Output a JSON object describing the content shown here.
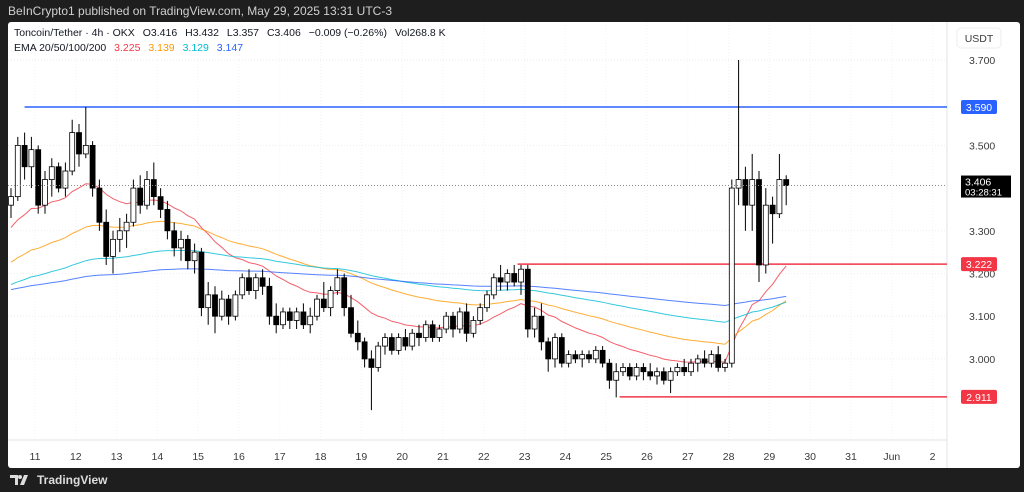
{
  "header": {
    "publisher": "BeInCrypto1 published on TradingView.com, May 29, 2025 13:31 UTC-3"
  },
  "legend": {
    "symbol": "Toncoin/Tether · 4h · OKX",
    "open": "O3.416",
    "high": "H3.432",
    "low": "L3.357",
    "close": "C3.406",
    "change": "−0.009 (−0.26%)",
    "volume": "Vol268.8 K",
    "ema_label": "EMA 20/50/100/200",
    "ema_values": [
      "3.225",
      "3.139",
      "3.129",
      "3.147"
    ]
  },
  "colors": {
    "up": "#ffffff",
    "down": "#000000",
    "ema20": "#f23645",
    "ema50": "#ff9800",
    "ema100": "#00bcd4",
    "ema200": "#2962ff",
    "blue_level": "#2962ff",
    "red_level": "#f23645"
  },
  "footer": {
    "brand": "TradingView"
  },
  "chart_data": {
    "type": "candlestick",
    "title": "Toncoin/Tether · 4h · OKX",
    "currency": "USDT",
    "ylim": [
      2.86,
      3.76
    ],
    "yticks": [
      "3.700",
      "3.500",
      "3.300",
      "3.200",
      "3.100",
      "3.000"
    ],
    "xticks": [
      "11",
      "12",
      "13",
      "14",
      "15",
      "16",
      "17",
      "18",
      "19",
      "20",
      "21",
      "22",
      "23",
      "24",
      "25",
      "26",
      "27",
      "28",
      "29",
      "30",
      "31",
      "Jun",
      "2"
    ],
    "current_price": {
      "value": 3.406,
      "label": "3.406",
      "countdown": "03:28:31"
    },
    "levels": [
      {
        "value": 3.59,
        "label": "3.590",
        "color": "#2962ff",
        "start_index": 2
      },
      {
        "value": 3.222,
        "label": "3.222",
        "color": "#f23645",
        "start_index": 74.5
      },
      {
        "value": 2.911,
        "label": "2.911",
        "color": "#f23645",
        "start_index": 89.5
      }
    ],
    "ema_seed": {
      "ema20": 3.3,
      "ema50": 3.22,
      "ema100": 3.17,
      "ema200": 3.16
    },
    "ema_periods": [
      20,
      50,
      100,
      200
    ],
    "candles": [
      [
        3.36,
        3.4,
        3.33,
        3.38
      ],
      [
        3.38,
        3.52,
        3.37,
        3.5
      ],
      [
        3.5,
        3.53,
        3.42,
        3.45
      ],
      [
        3.45,
        3.52,
        3.4,
        3.49
      ],
      [
        3.49,
        3.5,
        3.34,
        3.36
      ],
      [
        3.36,
        3.44,
        3.34,
        3.42
      ],
      [
        3.42,
        3.47,
        3.38,
        3.45
      ],
      [
        3.45,
        3.46,
        3.39,
        3.4
      ],
      [
        3.4,
        3.46,
        3.38,
        3.44
      ],
      [
        3.44,
        3.56,
        3.43,
        3.53
      ],
      [
        3.53,
        3.55,
        3.45,
        3.48
      ],
      [
        3.48,
        3.59,
        3.47,
        3.5
      ],
      [
        3.5,
        3.51,
        3.38,
        3.4
      ],
      [
        3.4,
        3.42,
        3.3,
        3.32
      ],
      [
        3.32,
        3.35,
        3.22,
        3.24
      ],
      [
        3.24,
        3.3,
        3.2,
        3.28
      ],
      [
        3.28,
        3.33,
        3.25,
        3.3
      ],
      [
        3.3,
        3.34,
        3.26,
        3.32
      ],
      [
        3.32,
        3.42,
        3.31,
        3.4
      ],
      [
        3.4,
        3.43,
        3.34,
        3.36
      ],
      [
        3.36,
        3.44,
        3.35,
        3.42
      ],
      [
        3.42,
        3.46,
        3.36,
        3.38
      ],
      [
        3.38,
        3.4,
        3.33,
        3.35
      ],
      [
        3.35,
        3.37,
        3.28,
        3.3
      ],
      [
        3.3,
        3.32,
        3.24,
        3.26
      ],
      [
        3.26,
        3.3,
        3.23,
        3.28
      ],
      [
        3.28,
        3.29,
        3.21,
        3.23
      ],
      [
        3.23,
        3.27,
        3.2,
        3.25
      ],
      [
        3.25,
        3.26,
        3.1,
        3.12
      ],
      [
        3.12,
        3.18,
        3.08,
        3.15
      ],
      [
        3.15,
        3.17,
        3.06,
        3.1
      ],
      [
        3.1,
        3.16,
        3.09,
        3.14
      ],
      [
        3.14,
        3.15,
        3.08,
        3.1
      ],
      [
        3.1,
        3.16,
        3.09,
        3.15
      ],
      [
        3.15,
        3.2,
        3.14,
        3.19
      ],
      [
        3.19,
        3.21,
        3.15,
        3.16
      ],
      [
        3.16,
        3.2,
        3.14,
        3.19
      ],
      [
        3.19,
        3.21,
        3.15,
        3.17
      ],
      [
        3.17,
        3.19,
        3.08,
        3.1
      ],
      [
        3.1,
        3.13,
        3.06,
        3.08
      ],
      [
        3.08,
        3.12,
        3.07,
        3.11
      ],
      [
        3.11,
        3.12,
        3.07,
        3.09
      ],
      [
        3.09,
        3.12,
        3.07,
        3.11
      ],
      [
        3.11,
        3.13,
        3.07,
        3.08
      ],
      [
        3.08,
        3.12,
        3.06,
        3.1
      ],
      [
        3.1,
        3.15,
        3.09,
        3.14
      ],
      [
        3.14,
        3.18,
        3.11,
        3.12
      ],
      [
        3.12,
        3.17,
        3.1,
        3.16
      ],
      [
        3.16,
        3.21,
        3.15,
        3.19
      ],
      [
        3.19,
        3.2,
        3.1,
        3.12
      ],
      [
        3.12,
        3.15,
        3.05,
        3.06
      ],
      [
        3.06,
        3.09,
        3.02,
        3.04
      ],
      [
        3.04,
        3.05,
        2.98,
        3.0
      ],
      [
        3.0,
        3.02,
        2.88,
        2.98
      ],
      [
        2.98,
        3.04,
        2.97,
        3.03
      ],
      [
        3.03,
        3.06,
        3.01,
        3.05
      ],
      [
        3.05,
        3.06,
        3.01,
        3.02
      ],
      [
        3.02,
        3.06,
        3.01,
        3.05
      ],
      [
        3.05,
        3.07,
        3.02,
        3.03
      ],
      [
        3.03,
        3.07,
        3.02,
        3.06
      ],
      [
        3.06,
        3.08,
        3.03,
        3.05
      ],
      [
        3.05,
        3.09,
        3.04,
        3.08
      ],
      [
        3.08,
        3.09,
        3.04,
        3.05
      ],
      [
        3.05,
        3.08,
        3.04,
        3.07
      ],
      [
        3.07,
        3.11,
        3.06,
        3.1
      ],
      [
        3.1,
        3.11,
        3.05,
        3.07
      ],
      [
        3.07,
        3.12,
        3.06,
        3.11
      ],
      [
        3.11,
        3.13,
        3.04,
        3.06
      ],
      [
        3.06,
        3.1,
        3.05,
        3.09
      ],
      [
        3.09,
        3.13,
        3.08,
        3.12
      ],
      [
        3.12,
        3.16,
        3.11,
        3.15
      ],
      [
        3.15,
        3.2,
        3.14,
        3.19
      ],
      [
        3.19,
        3.22,
        3.16,
        3.18
      ],
      [
        3.18,
        3.21,
        3.16,
        3.2
      ],
      [
        3.2,
        3.22,
        3.17,
        3.18
      ],
      [
        3.18,
        3.22,
        3.15,
        3.21
      ],
      [
        3.21,
        3.22,
        3.05,
        3.07
      ],
      [
        3.07,
        3.12,
        3.05,
        3.1
      ],
      [
        3.1,
        3.13,
        3.02,
        3.04
      ],
      [
        3.04,
        3.05,
        2.97,
        3.0
      ],
      [
        3.0,
        3.06,
        2.98,
        3.05
      ],
      [
        3.05,
        3.06,
        2.98,
        2.99
      ],
      [
        2.99,
        3.02,
        2.98,
        3.01
      ],
      [
        3.01,
        3.02,
        2.99,
        3.0
      ],
      [
        3.0,
        3.02,
        2.98,
        3.01
      ],
      [
        3.01,
        3.02,
        2.99,
        3.0
      ],
      [
        3.0,
        3.03,
        2.99,
        3.02
      ],
      [
        3.02,
        3.03,
        2.98,
        2.99
      ],
      [
        2.99,
        3.0,
        2.93,
        2.95
      ],
      [
        2.95,
        2.99,
        2.91,
        2.97
      ],
      [
        2.97,
        2.99,
        2.96,
        2.98
      ],
      [
        2.98,
        2.99,
        2.95,
        2.96
      ],
      [
        2.96,
        2.99,
        2.95,
        2.98
      ],
      [
        2.98,
        2.99,
        2.95,
        2.97
      ],
      [
        2.97,
        2.99,
        2.95,
        2.96
      ],
      [
        2.96,
        2.98,
        2.94,
        2.97
      ],
      [
        2.97,
        2.98,
        2.94,
        2.95
      ],
      [
        2.95,
        2.98,
        2.92,
        2.97
      ],
      [
        2.97,
        2.99,
        2.96,
        2.98
      ],
      [
        2.98,
        3.0,
        2.96,
        2.97
      ],
      [
        2.97,
        3.0,
        2.96,
        2.99
      ],
      [
        2.99,
        3.01,
        2.97,
        3.0
      ],
      [
        3.0,
        3.02,
        2.98,
        2.99
      ],
      [
        2.99,
        3.02,
        2.98,
        3.01
      ],
      [
        3.01,
        3.03,
        2.97,
        2.98
      ],
      [
        2.98,
        3.0,
        2.97,
        2.99
      ],
      [
        2.99,
        3.42,
        2.98,
        3.4
      ],
      [
        3.4,
        3.7,
        3.36,
        3.42
      ],
      [
        3.42,
        3.45,
        3.3,
        3.36
      ],
      [
        3.36,
        3.48,
        3.3,
        3.42
      ],
      [
        3.42,
        3.44,
        3.18,
        3.22
      ],
      [
        3.22,
        3.4,
        3.2,
        3.36
      ],
      [
        3.36,
        3.38,
        3.27,
        3.34
      ],
      [
        3.34,
        3.48,
        3.33,
        3.42
      ],
      [
        3.42,
        3.43,
        3.36,
        3.406
      ]
    ]
  }
}
